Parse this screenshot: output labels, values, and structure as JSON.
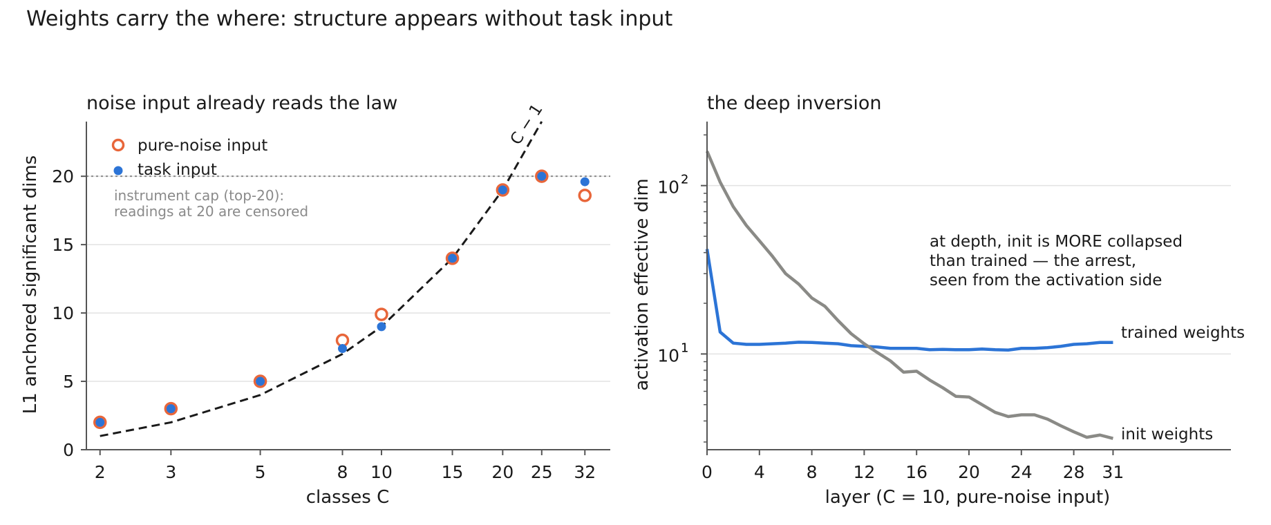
{
  "figure": {
    "suptitle": "Weights carry the where: structure appears without task input"
  },
  "colors": {
    "noise": "#e8663a",
    "task": "#2c74d6",
    "trained": "#2c74d6",
    "init": "#8a8a86",
    "fit": "#1a1a1a",
    "grid": "#e2e2e2",
    "cap": "#8a8a8a"
  },
  "chart_data": [
    {
      "type": "scatter",
      "title": "noise input already reads the law",
      "xlabel": "classes C",
      "ylabel": "L1 anchored significant dims",
      "xscale": "log",
      "xticks": [
        2,
        3,
        5,
        8,
        10,
        15,
        20,
        25,
        32
      ],
      "xlim": [
        1.85,
        37
      ],
      "yticks": [
        0,
        5,
        10,
        15,
        20
      ],
      "ylim": [
        0,
        24
      ],
      "grid": "y",
      "legend_placement": "top-left",
      "series": [
        {
          "name": "pure-noise input",
          "marker": "open-circle",
          "x": [
            2,
            3,
            5,
            8,
            10,
            15,
            20,
            25,
            32
          ],
          "y": [
            2,
            3,
            5,
            8,
            9.9,
            14,
            19,
            20,
            18.6
          ]
        },
        {
          "name": "task input",
          "marker": "filled-circle",
          "x": [
            2,
            3,
            5,
            8,
            10,
            15,
            20,
            25,
            32
          ],
          "y": [
            2,
            3,
            5,
            7.4,
            9,
            14,
            19,
            20,
            19.6
          ]
        }
      ],
      "fit": {
        "label": "C − 1",
        "style": "dashed",
        "x": [
          2,
          3,
          5,
          8,
          10,
          15,
          20,
          25
        ],
        "y": [
          1,
          2,
          4,
          7,
          9,
          14,
          19,
          24
        ]
      },
      "cap": {
        "y": 20,
        "style": "dotted",
        "note_lines": [
          "instrument cap (top-20):",
          "readings at 20 are censored"
        ]
      }
    },
    {
      "type": "line",
      "title": "the deep inversion",
      "xlabel": "layer  (C = 10, pure-noise input)",
      "ylabel": "activation effective dim",
      "yscale": "log",
      "xticks": [
        0,
        4,
        8,
        12,
        16,
        20,
        24,
        28,
        31
      ],
      "xlim": [
        0,
        40
      ],
      "ylim": [
        2.7,
        240
      ],
      "yticks_major": [
        {
          "base": "10",
          "exp": "2",
          "value": 100
        },
        {
          "base": "10",
          "exp": "1",
          "value": 10
        }
      ],
      "grid": "y-major",
      "annotation_lines": [
        "at depth, init is MORE collapsed",
        "than trained — the arrest,",
        "seen from the activation side"
      ],
      "series": [
        {
          "name": "trained weights",
          "x": [
            0,
            1,
            2,
            3,
            4,
            5,
            6,
            7,
            8,
            9,
            10,
            11,
            12,
            13,
            14,
            15,
            16,
            17,
            18,
            19,
            20,
            21,
            22,
            23,
            24,
            25,
            26,
            27,
            28,
            29,
            30,
            31
          ],
          "y": [
            42,
            13.5,
            11.6,
            11.4,
            11.4,
            11.5,
            11.6,
            11.75,
            11.7,
            11.6,
            11.5,
            11.2,
            11.1,
            11.0,
            10.8,
            10.8,
            10.8,
            10.6,
            10.65,
            10.6,
            10.6,
            10.7,
            10.6,
            10.55,
            10.8,
            10.8,
            10.9,
            11.1,
            11.4,
            11.5,
            11.7,
            11.7
          ]
        },
        {
          "name": "init weights",
          "x": [
            0,
            1,
            2,
            3,
            4,
            5,
            6,
            7,
            8,
            9,
            10,
            11,
            12,
            13,
            14,
            15,
            16,
            17,
            18,
            19,
            20,
            21,
            22,
            23,
            24,
            25,
            26,
            27,
            28,
            29,
            30,
            31
          ],
          "y": [
            160,
            105,
            75,
            58,
            47,
            38,
            30,
            26,
            21.5,
            19.2,
            15.8,
            13.2,
            11.5,
            10.2,
            9.1,
            7.8,
            7.9,
            7.0,
            6.3,
            5.6,
            5.55,
            5.0,
            4.5,
            4.25,
            4.35,
            4.35,
            4.1,
            3.75,
            3.45,
            3.2,
            3.3,
            3.15
          ]
        }
      ]
    }
  ]
}
